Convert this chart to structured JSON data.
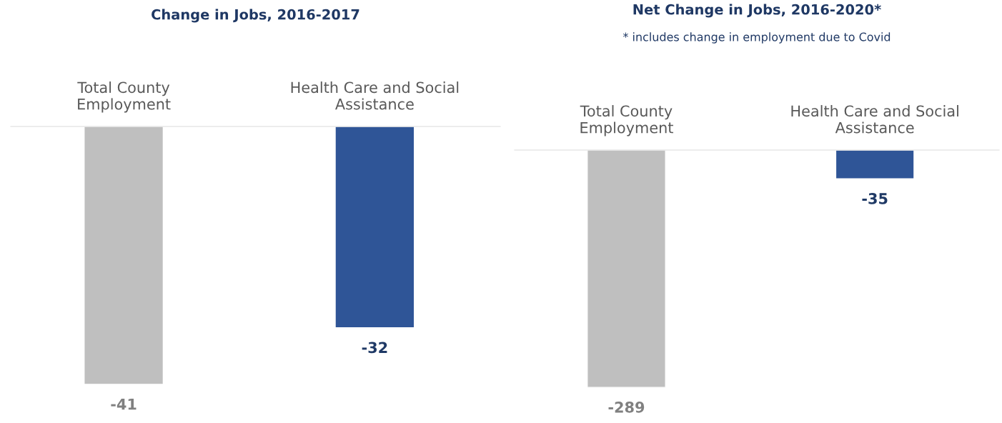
{
  "chart_data": [
    {
      "type": "bar",
      "title": "Change in Jobs, 2016-2017",
      "categories": [
        "Total County\nEmployment",
        "Health Care and Social\nAssistance"
      ],
      "values": [
        -41,
        -32
      ],
      "colors": [
        "#bfbfbf",
        "#2f5597"
      ],
      "data_labels": true
    },
    {
      "type": "bar",
      "title": "Net Change in Jobs, 2016-2020*",
      "subtitle": "* includes change in employment due to Covid",
      "categories": [
        "Total County\nEmployment",
        "Health Care and Social\nAssistance"
      ],
      "values": [
        -289,
        -35
      ],
      "colors": [
        "#bfbfbf",
        "#2f5597"
      ],
      "data_labels": true
    }
  ]
}
